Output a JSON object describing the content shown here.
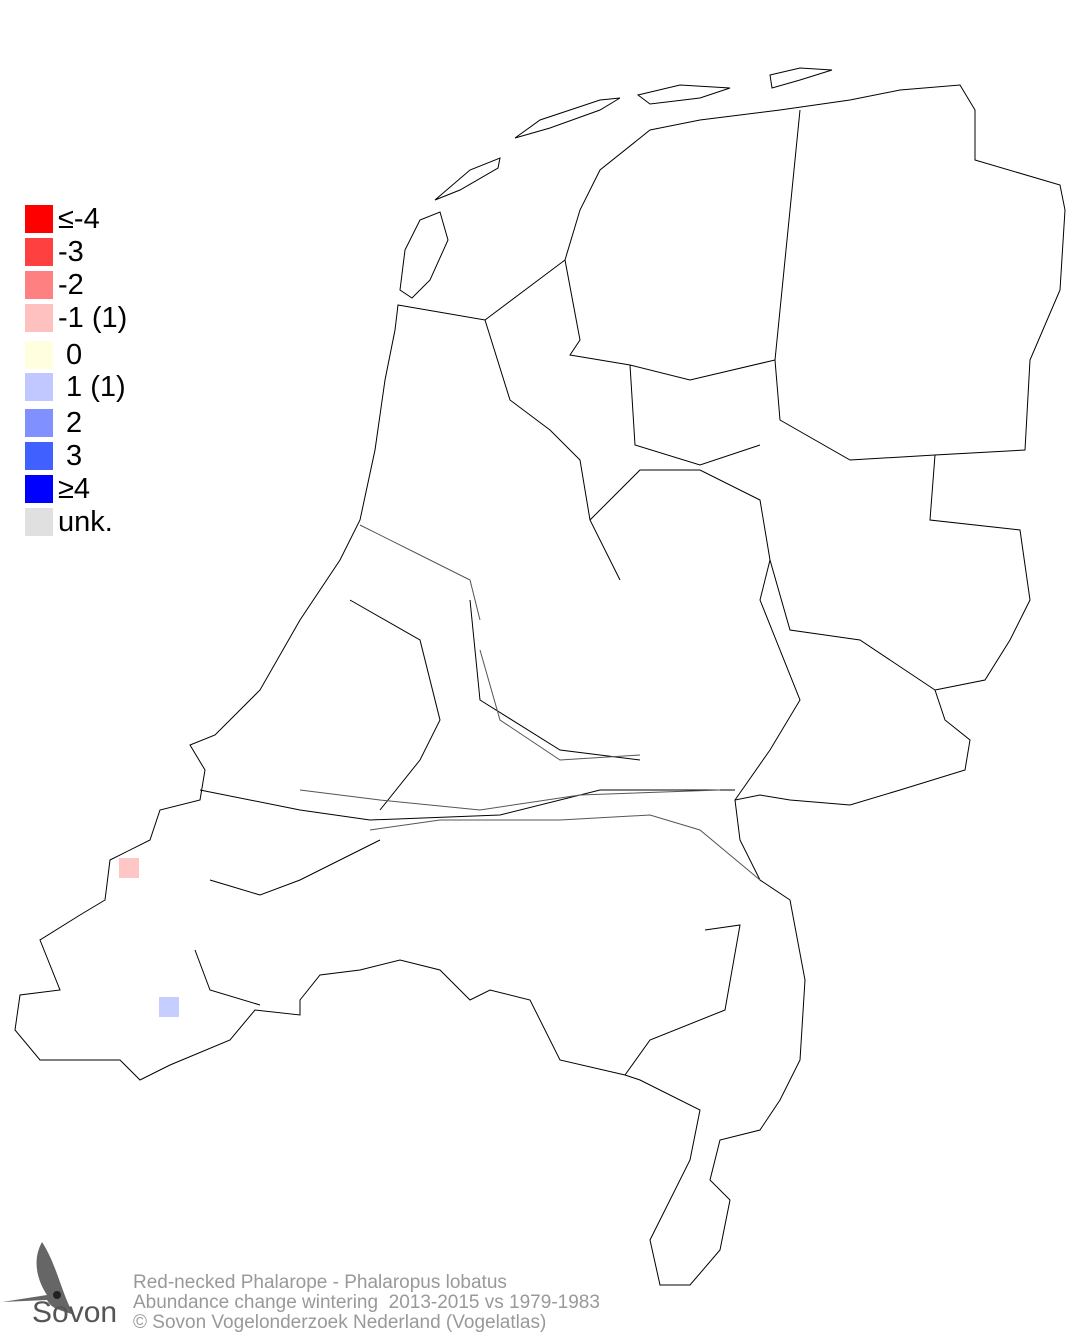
{
  "legend": {
    "items": [
      {
        "label": "≤-4",
        "color": "#ff0000"
      },
      {
        "label": "-3",
        "color": "#ff4040"
      },
      {
        "label": "-2",
        "color": "#ff8080"
      },
      {
        "label": "-1 (1)",
        "color": "#ffc0c0"
      },
      {
        "label": " 0",
        "color": "#ffffe0"
      },
      {
        "label": " 1 (1)",
        "color": "#c0c8ff"
      },
      {
        "label": " 2",
        "color": "#8090ff"
      },
      {
        "label": " 3",
        "color": "#4060ff"
      },
      {
        "label": "≥4",
        "color": "#0000ff"
      },
      {
        "label": "unk.",
        "color": "#e0e0e0"
      }
    ]
  },
  "map": {
    "region": "Netherlands",
    "highlighted_cells": [
      {
        "value": -1,
        "color": "#ffc0c0",
        "location": "Walcheren coast"
      },
      {
        "value": 1,
        "color": "#c0c8ff",
        "location": "Zeeuws-Vlaanderen"
      }
    ],
    "border_color": "#000000"
  },
  "footer": {
    "line1": "Red-necked Phalarope - Phalaropus lobatus",
    "line2": "Abundance change wintering  2013-2015 vs 1979-1983",
    "line3": "© Sovon Vogelonderzoek Nederland (Vogelatlas)"
  },
  "logo": {
    "text": "Sovon"
  }
}
